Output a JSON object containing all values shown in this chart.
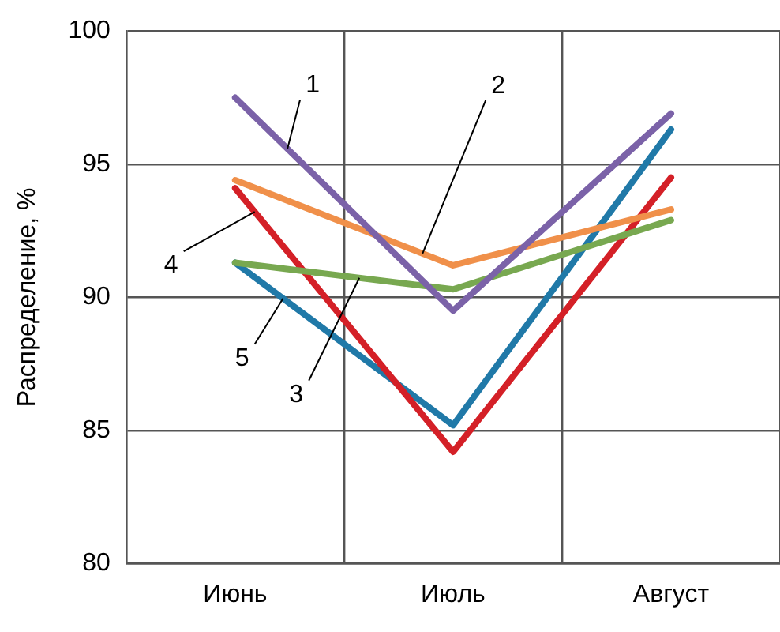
{
  "chart_data": {
    "type": "line",
    "ylabel": "Распределение, %",
    "categories": [
      "Июнь",
      "Июль",
      "Август"
    ],
    "series": [
      {
        "name": "1",
        "color": "#7b62a8",
        "values": [
          97.5,
          89.5,
          96.9
        ]
      },
      {
        "name": "2",
        "color": "#f0904a",
        "values": [
          94.4,
          91.2,
          93.3
        ]
      },
      {
        "name": "3",
        "color": "#78a850",
        "values": [
          91.3,
          90.3,
          92.9
        ]
      },
      {
        "name": "4",
        "color": "#d42027",
        "values": [
          94.1,
          84.2,
          94.5
        ]
      },
      {
        "name": "5",
        "color": "#2079a8",
        "values": [
          91.3,
          85.2,
          96.3
        ]
      }
    ],
    "ylim": [
      80,
      100
    ],
    "yticks": [
      80,
      85,
      90,
      95,
      100
    ],
    "grid": true,
    "legend": false,
    "marker": "none",
    "line_style": "solid"
  }
}
